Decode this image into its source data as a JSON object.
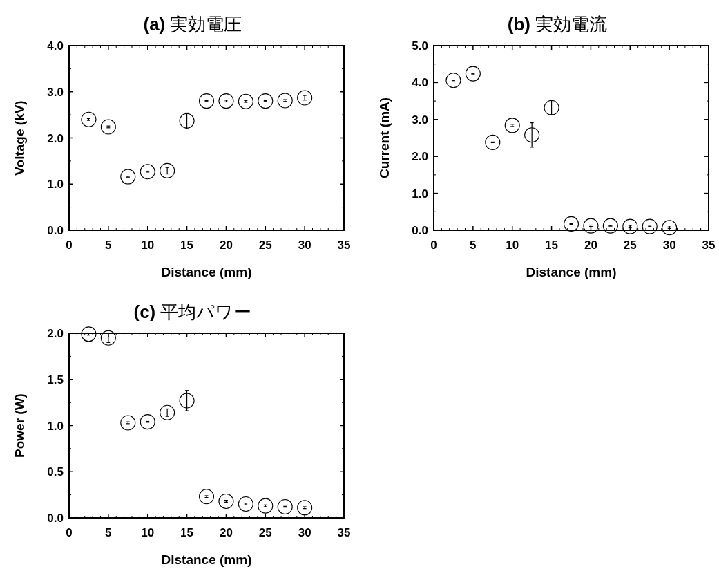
{
  "chart_data": [
    {
      "type": "scatter",
      "title": "**(a)** 実効電圧",
      "xlabel": "Distance (mm)",
      "ylabel": "Voltage (kV)",
      "marker": "circle",
      "color": "#000000",
      "x": [
        2.5,
        5,
        7.5,
        10,
        12.5,
        15,
        17.5,
        20,
        22.5,
        25,
        27.5,
        30
      ],
      "values": [
        2.4,
        2.24,
        1.16,
        1.27,
        1.29,
        2.37,
        2.8,
        2.8,
        2.79,
        2.8,
        2.81,
        2.87
      ],
      "errors": [
        0.02,
        0.02,
        0.01,
        0.01,
        0.07,
        0.17,
        0.01,
        0.02,
        0.02,
        0.01,
        0.02,
        0.05
      ],
      "xlim": [
        0,
        35
      ],
      "xticks": [
        0,
        5,
        10,
        15,
        20,
        25,
        30,
        35
      ],
      "ylim": [
        0,
        4
      ],
      "yticks": [
        {
          "value": 0,
          "label": "0.0"
        },
        {
          "value": 1,
          "label": "1.0"
        },
        {
          "value": 2,
          "label": "2.0"
        },
        {
          "value": 3,
          "label": "3.0"
        },
        {
          "value": 4,
          "label": "4.0"
        }
      ]
    },
    {
      "type": "scatter",
      "title": "**(b)** 実効電流",
      "xlabel": "Distance (mm)",
      "ylabel": "Current (mA)",
      "marker": "circle",
      "color": "#000000",
      "x": [
        2.5,
        5,
        7.5,
        10,
        12.5,
        15,
        17.5,
        20,
        22.5,
        25,
        27.5,
        30
      ],
      "values": [
        4.06,
        4.24,
        2.38,
        2.84,
        2.58,
        3.32,
        0.17,
        0.12,
        0.12,
        0.1,
        0.1,
        0.07
      ],
      "errors": [
        0.01,
        0.01,
        0.01,
        0.03,
        0.33,
        0.19,
        0.01,
        0.02,
        0.01,
        0.03,
        0.01,
        0.02
      ],
      "xlim": [
        0,
        35
      ],
      "xticks": [
        0,
        5,
        10,
        15,
        20,
        25,
        30,
        35
      ],
      "ylim": [
        0,
        5
      ],
      "yticks": [
        {
          "value": 0,
          "label": "0.0"
        },
        {
          "value": 1,
          "label": "1.0"
        },
        {
          "value": 2,
          "label": "2.0"
        },
        {
          "value": 3,
          "label": "3.0"
        },
        {
          "value": 4,
          "label": "4.0"
        },
        {
          "value": 5,
          "label": "5.0"
        }
      ]
    },
    {
      "type": "scatter",
      "title": "**(c)** 平均パワー",
      "xlabel": "Distance (mm)",
      "ylabel": "Power (W)",
      "marker": "circle",
      "color": "#000000",
      "x": [
        2.5,
        5,
        7.5,
        10,
        12.5,
        15,
        17.5,
        20,
        22.5,
        25,
        27.5,
        30
      ],
      "values": [
        1.99,
        1.95,
        1.03,
        1.04,
        1.14,
        1.27,
        0.23,
        0.18,
        0.15,
        0.13,
        0.12,
        0.11
      ],
      "errors": [
        0.01,
        0.05,
        0.01,
        0.005,
        0.04,
        0.11,
        0.01,
        0.01,
        0.01,
        0.01,
        0.005,
        0.01
      ],
      "xlim": [
        0,
        35
      ],
      "xticks": [
        0,
        5,
        10,
        15,
        20,
        25,
        30,
        35
      ],
      "ylim": [
        0,
        2
      ],
      "yticks": [
        {
          "value": 0,
          "label": "0.0"
        },
        {
          "value": 0.5,
          "label": "0.5"
        },
        {
          "value": 1,
          "label": "1.0"
        },
        {
          "value": 1.5,
          "label": "1.5"
        },
        {
          "value": 2,
          "label": "2.0"
        }
      ]
    }
  ]
}
